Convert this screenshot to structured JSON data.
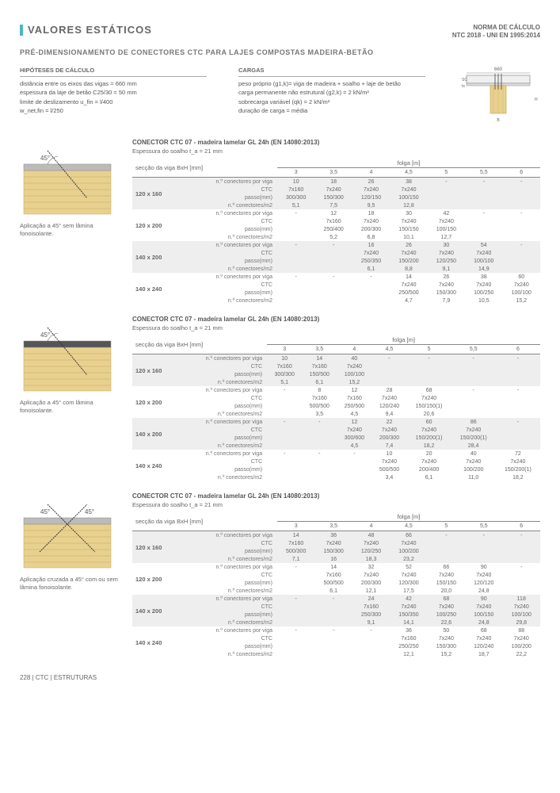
{
  "header": {
    "title": "VALORES ESTÁTICOS",
    "norma1": "NORMA DE CÁLCULO",
    "norma2": "NTC 2018 - UNI EN 1995:2014",
    "subtitle": "PRÉ-DIMENSIONAMENTO DE CONECTORES CTC PARA LAJES COMPOSTAS MADEIRA-BETÃO"
  },
  "hipoteses": {
    "h": "HIPÓTESES DE CÁLCULO",
    "lines": [
      "distância entre os eixos das vigas = 660 mm",
      "espessura da laje de betão C25/30 = 50 mm",
      "limite de deslizamento   u_fin = l/400",
      "                         w_net,fin = l/250"
    ]
  },
  "cargas": {
    "h": "CARGAS",
    "lines": [
      "peso próprio (g1,k)= viga de madeira + soalho + laje de betão",
      "carga permanente não estrutural (g2,k) = 2 kN/m²",
      "sobrecarga variável (qk) = 2 kN/m²",
      "duração de carga = média"
    ]
  },
  "cross_section": {
    "sc": "SC",
    "ts": "ts",
    "H": "H",
    "B": "B",
    "dim": "660"
  },
  "spans": [
    "3",
    "3,5",
    "4",
    "4,5",
    "5",
    "5,5",
    "6"
  ],
  "row_labels": [
    "n.º conectores por viga",
    "CTC",
    "passo(mm)",
    "n.º conectores/m2"
  ],
  "th_sec": "secção da viga BxH [mm]",
  "th_folga": "folga [m]",
  "conn_sub": "Espessura do soalho t_a = 21 mm",
  "sections": [
    {
      "conn_title": "CONECTOR CTC 07 - madeira lamelar GL 24h (EN 14080:2013)",
      "caption": "Aplicação a 45° sem lâmina fonoisolante.",
      "diagram": "woodgrain-45",
      "beams": [
        {
          "stripe": true,
          "name": "120 x 160",
          "rows": [
            [
              "10",
              "18",
              "26",
              "38",
              "-",
              "-",
              "-"
            ],
            [
              "7x160",
              "7x240",
              "7x240",
              "7x240",
              "",
              "",
              ""
            ],
            [
              "300/300",
              "150/300",
              "120/150",
              "100/150",
              "",
              "",
              ""
            ],
            [
              "5,1",
              "7,5",
              "9,5",
              "12,8",
              "",
              "",
              ""
            ]
          ]
        },
        {
          "stripe": false,
          "name": "120 x 200",
          "rows": [
            [
              "-",
              "12",
              "18",
              "30",
              "42",
              "-",
              "-"
            ],
            [
              "",
              "7x160",
              "7x240",
              "7x240",
              "7x240",
              "",
              ""
            ],
            [
              "",
              "250/400",
              "200/300",
              "150/150",
              "100/150",
              "",
              ""
            ],
            [
              "",
              "5,2",
              "6,8",
              "10,1",
              "12,7",
              "",
              ""
            ]
          ]
        },
        {
          "stripe": true,
          "name": "140 x 200",
          "rows": [
            [
              "-",
              "-",
              "16",
              "26",
              "30",
              "54",
              "-"
            ],
            [
              "",
              "",
              "7x240",
              "7x240",
              "7x240",
              "7x240",
              ""
            ],
            [
              "",
              "",
              "250/350",
              "150/200",
              "120/250",
              "100/100",
              ""
            ],
            [
              "",
              "",
              "6,1",
              "8,8",
              "9,1",
              "14,9",
              ""
            ]
          ]
        },
        {
          "stripe": false,
          "name": "140 x 240",
          "rows": [
            [
              "-",
              "-",
              "-",
              "14",
              "26",
              "38",
              "60"
            ],
            [
              "",
              "",
              "",
              "7x240",
              "7x240",
              "7x240",
              "7x240"
            ],
            [
              "",
              "",
              "",
              "250/500",
              "150/300",
              "100/250",
              "100/100"
            ],
            [
              "",
              "",
              "",
              "4,7",
              "7,9",
              "10,5",
              "15,2"
            ]
          ]
        }
      ]
    },
    {
      "conn_title": "CONECTOR CTC 07 - madeira lamelar GL 24h (EN 14080:2013)",
      "caption": "Aplicação a 45° com lâmina fonoisolante.",
      "diagram": "woodgrain-45-layer",
      "beams": [
        {
          "stripe": true,
          "name": "120 x 160",
          "rows": [
            [
              "10",
              "14",
              "40",
              "-",
              "-",
              "-",
              "-"
            ],
            [
              "7x160",
              "7x160",
              "7x240",
              "",
              "",
              "",
              ""
            ],
            [
              "300/300",
              "150/500",
              "100/100",
              "",
              "",
              "",
              ""
            ],
            [
              "5,1",
              "6,1",
              "15,2",
              "",
              "",
              "",
              ""
            ]
          ]
        },
        {
          "stripe": false,
          "name": "120 x 200",
          "rows": [
            [
              "-",
              "8",
              "12",
              "28",
              "68",
              "-",
              "-"
            ],
            [
              "",
              "7x160",
              "7x160",
              "7x240",
              "7x240",
              "",
              ""
            ],
            [
              "",
              "500/500",
              "250/500",
              "120/240",
              "150/150(1)",
              "",
              ""
            ],
            [
              "",
              "3,5",
              "4,5",
              "9,4",
              "20,6",
              "",
              ""
            ]
          ]
        },
        {
          "stripe": true,
          "name": "140 x 200",
          "rows": [
            [
              "-",
              "-",
              "12",
              "22",
              "60",
              "86",
              "-"
            ],
            [
              "",
              "",
              "7x240",
              "7x240",
              "7x240",
              "7x240",
              ""
            ],
            [
              "",
              "",
              "300/600",
              "200/300",
              "150/200(1)",
              "150/200(1)",
              ""
            ],
            [
              "",
              "",
              "4,5",
              "7,4",
              "18,2",
              "28,4",
              ""
            ]
          ]
        },
        {
          "stripe": false,
          "name": "140 x 240",
          "rows": [
            [
              "-",
              "-",
              "-",
              "10",
              "20",
              "40",
              "72"
            ],
            [
              "",
              "",
              "",
              "7x240",
              "7x240",
              "7x240",
              "7x240"
            ],
            [
              "",
              "",
              "",
              "500/500",
              "200/400",
              "100/200",
              "150/200(1)"
            ],
            [
              "",
              "",
              "",
              "3,4",
              "6,1",
              "11,0",
              "18,2"
            ]
          ]
        }
      ]
    },
    {
      "conn_title": "CONECTOR CTC 07 - madeira lamelar GL 24h (EN 14080:2013)",
      "caption": "Aplicação cruzada a 45° com ou sem lâmina fonoisolante.",
      "diagram": "woodgrain-cross",
      "beams": [
        {
          "stripe": true,
          "name": "120 x 160",
          "rows": [
            [
              "14",
              "36",
              "48",
              "66",
              "-",
              "-",
              "-"
            ],
            [
              "7x160",
              "7x240",
              "7x240",
              "7x240",
              "",
              "",
              ""
            ],
            [
              "500/300",
              "150/300",
              "120/250",
              "100/200",
              "",
              "",
              ""
            ],
            [
              "7,1",
              "16",
              "18,3",
              "23,2",
              "",
              "",
              ""
            ]
          ]
        },
        {
          "stripe": false,
          "name": "120 x 200",
          "rows": [
            [
              "-",
              "14",
              "32",
              "52",
              "66",
              "90",
              "-"
            ],
            [
              "",
              "7x160",
              "7x240",
              "7x240",
              "7x240",
              "7x240",
              ""
            ],
            [
              "",
              "500/500",
              "200/300",
              "120/300",
              "150/150",
              "120/120",
              ""
            ],
            [
              "",
              "6,1",
              "12,1",
              "17,5",
              "20,0",
              "24,8",
              ""
            ]
          ]
        },
        {
          "stripe": true,
          "name": "140 x 200",
          "rows": [
            [
              "-",
              "-",
              "24",
              "42",
              "68",
              "90",
              "118"
            ],
            [
              "",
              "",
              "7x160",
              "7x240",
              "7x240",
              "7x240",
              "7x240"
            ],
            [
              "",
              "",
              "250/300",
              "150/350",
              "100/250",
              "100/150",
              "100/100"
            ],
            [
              "",
              "",
              "9,1",
              "14,1",
              "22,6",
              "24,8",
              "29,8"
            ]
          ]
        },
        {
          "stripe": false,
          "name": "140 x 240",
          "rows": [
            [
              "-",
              "-",
              "-",
              "36",
              "50",
              "68",
              "88"
            ],
            [
              "",
              "",
              "",
              "7x160",
              "7x240",
              "7x240",
              "7x240"
            ],
            [
              "",
              "",
              "",
              "250/250",
              "150/300",
              "120/240",
              "100/200"
            ],
            [
              "",
              "",
              "",
              "12,1",
              "15,2",
              "18,7",
              "22,2"
            ]
          ]
        }
      ]
    }
  ],
  "footer": "228 | CTC | ESTRUTURAS",
  "colors": {
    "teal": "#4db8b8",
    "wood": "#e8d090",
    "wood_dark": "#c8a850",
    "stripe": "#eeeeee",
    "concrete": "#999"
  }
}
